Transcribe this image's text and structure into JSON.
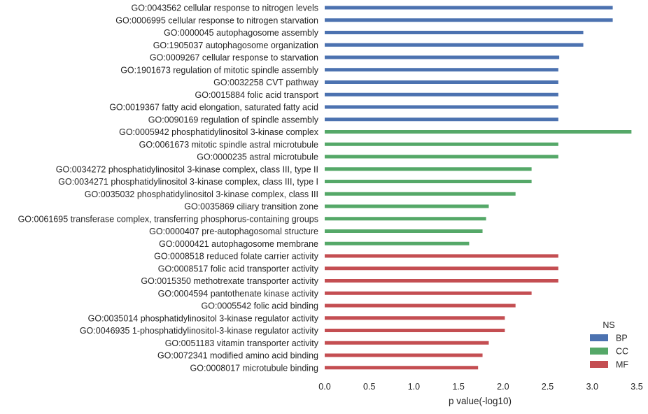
{
  "chart_data": {
    "type": "bar",
    "orientation": "horizontal",
    "title": "",
    "xlabel": "p value(-log10)",
    "ylabel": "",
    "xlim": [
      0,
      3.5
    ],
    "x_ticks": [
      "0.0",
      "0.5",
      "1.0",
      "1.5",
      "2.0",
      "2.5",
      "3.0",
      "3.5"
    ],
    "grid": false,
    "legend": {
      "title": "NS",
      "placement": "bottom-right",
      "entries": [
        {
          "name": "BP",
          "color": "#4c72b0"
        },
        {
          "name": "CC",
          "color": "#55a868"
        },
        {
          "name": "MF",
          "color": "#c44e52"
        }
      ]
    },
    "bars": [
      {
        "label": "GO:0043562 cellular response to nitrogen levels",
        "value": 3.23,
        "ns": "BP"
      },
      {
        "label": "GO:0006995 cellular response to nitrogen starvation",
        "value": 3.23,
        "ns": "BP"
      },
      {
        "label": "GO:0000045 autophagosome assembly",
        "value": 2.9,
        "ns": "BP"
      },
      {
        "label": "GO:1905037 autophagosome organization",
        "value": 2.9,
        "ns": "BP"
      },
      {
        "label": "GO:0009267 cellular response to starvation",
        "value": 2.63,
        "ns": "BP"
      },
      {
        "label": "GO:1901673 regulation of mitotic spindle assembly",
        "value": 2.62,
        "ns": "BP"
      },
      {
        "label": "GO:0032258 CVT pathway",
        "value": 2.62,
        "ns": "BP"
      },
      {
        "label": "GO:0015884 folic acid transport",
        "value": 2.62,
        "ns": "BP"
      },
      {
        "label": "GO:0019367 fatty acid elongation, saturated fatty acid",
        "value": 2.62,
        "ns": "BP"
      },
      {
        "label": "GO:0090169 regulation of spindle assembly",
        "value": 2.62,
        "ns": "BP"
      },
      {
        "label": "GO:0005942 phosphatidylinositol 3-kinase complex",
        "value": 3.44,
        "ns": "CC"
      },
      {
        "label": "GO:0061673 mitotic spindle astral microtubule",
        "value": 2.62,
        "ns": "CC"
      },
      {
        "label": "GO:0000235 astral microtubule",
        "value": 2.62,
        "ns": "CC"
      },
      {
        "label": "GO:0034272 phosphatidylinositol 3-kinase complex, class III, type II",
        "value": 2.32,
        "ns": "CC"
      },
      {
        "label": "GO:0034271 phosphatidylinositol 3-kinase complex, class III, type I",
        "value": 2.32,
        "ns": "CC"
      },
      {
        "label": "GO:0035032 phosphatidylinositol 3-kinase complex, class III",
        "value": 2.14,
        "ns": "CC"
      },
      {
        "label": "GO:0035869 ciliary transition zone",
        "value": 1.84,
        "ns": "CC"
      },
      {
        "label": "GO:0061695 transferase complex, transferring phosphorus-containing groups",
        "value": 1.81,
        "ns": "CC"
      },
      {
        "label": "GO:0000407 pre-autophagosomal structure",
        "value": 1.77,
        "ns": "CC"
      },
      {
        "label": "GO:0000421 autophagosome membrane",
        "value": 1.62,
        "ns": "CC"
      },
      {
        "label": "GO:0008518 reduced folate carrier activity",
        "value": 2.62,
        "ns": "MF"
      },
      {
        "label": "GO:0008517 folic acid transporter activity",
        "value": 2.62,
        "ns": "MF"
      },
      {
        "label": "GO:0015350 methotrexate transporter activity",
        "value": 2.62,
        "ns": "MF"
      },
      {
        "label": "GO:0004594 pantothenate kinase activity",
        "value": 2.32,
        "ns": "MF"
      },
      {
        "label": "GO:0005542 folic acid binding",
        "value": 2.14,
        "ns": "MF"
      },
      {
        "label": "GO:0035014 phosphatidylinositol 3-kinase regulator activity",
        "value": 2.02,
        "ns": "MF"
      },
      {
        "label": "GO:0046935 1-phosphatidylinositol-3-kinase regulator activity",
        "value": 2.02,
        "ns": "MF"
      },
      {
        "label": "GO:0051183 vitamin transporter activity",
        "value": 1.84,
        "ns": "MF"
      },
      {
        "label": "GO:0072341 modified amino acid binding",
        "value": 1.77,
        "ns": "MF"
      },
      {
        "label": "GO:0008017 microtubule binding",
        "value": 1.72,
        "ns": "MF"
      }
    ]
  }
}
